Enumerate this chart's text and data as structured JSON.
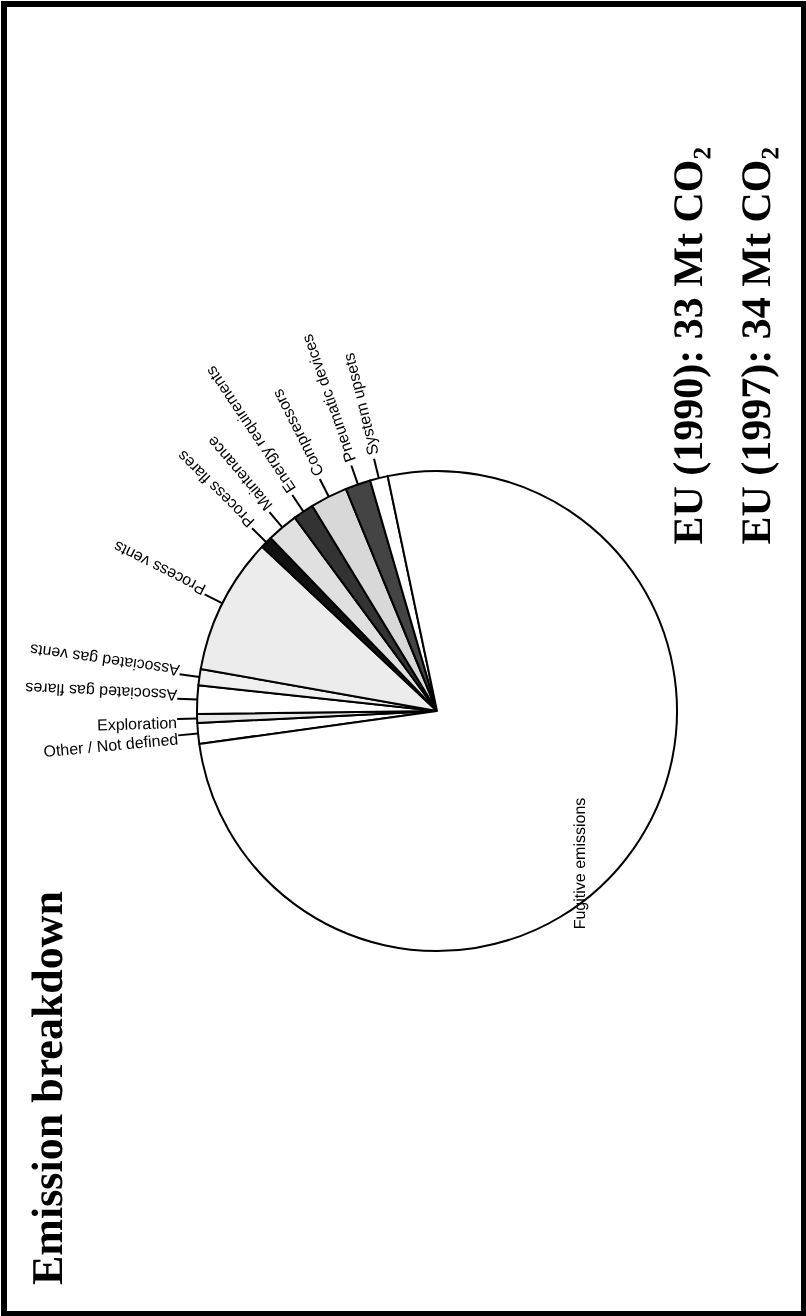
{
  "chart_data": {
    "type": "pie",
    "title": "Emission breakdown",
    "categories": [
      "Other / Not defined",
      "Exploration",
      "Associated gas flares",
      "Associated gas vents",
      "Process vents",
      "Process flares",
      "Maintenance",
      "Energy requirements",
      "Compressors",
      "Pneumatic devices",
      "System upsets",
      "Fugitive emissions"
    ],
    "values": [
      1.4,
      0.6,
      1.9,
      1.1,
      9.2,
      0.8,
      2.1,
      1.4,
      2.5,
      1.7,
      1.2,
      76.1
    ],
    "colors": [
      "#ffffff",
      "#e8e8e8",
      "#ffffff",
      "#f0f0f0",
      "#ececec",
      "#111111",
      "#e0e0e0",
      "#333333",
      "#d8d8d8",
      "#444444",
      "#ffffff",
      "#ffffff"
    ],
    "annotations": [
      "EU (1990): 33 Mt CO₂",
      "EU (1997): 34 Mt CO₂"
    ]
  }
}
